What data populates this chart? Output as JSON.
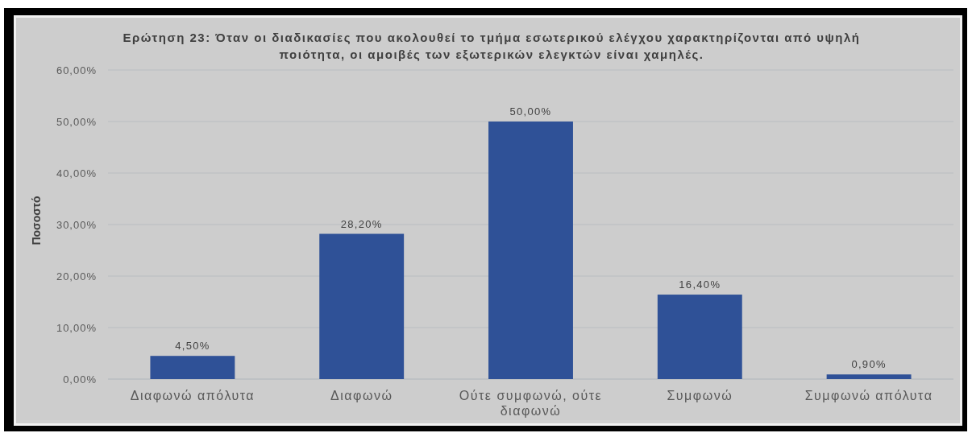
{
  "chart_data": {
    "type": "bar",
    "title": "Ερώτηση 23: Όταν οι διαδικασίες που ακολουθεί το τμήμα εσωτερικού ελέγχου χαρακτηρίζονται από υψηλή ποιότητα, οι αμοιβές των εξωτερικών ελεγκτών είναι χαμηλές.",
    "ylabel": "Ποσοστό",
    "categories": [
      "Διαφωνώ απόλυτα",
      "Διαφωνώ",
      "Ούτε συμφωνώ, ούτε διαφωνώ",
      "Συμφωνώ",
      "Συμφωνώ απόλυτα"
    ],
    "values": [
      4.5,
      28.2,
      50,
      16.4,
      0.9
    ],
    "value_labels": [
      "4,50%",
      "28,20%",
      "50,00%",
      "16,40%",
      "0,90%"
    ],
    "color": "#2f5197",
    "ylim": [
      0,
      60
    ],
    "yticks": [
      {
        "value": 0,
        "label": "0,00%"
      },
      {
        "value": 10,
        "label": "10,00%"
      },
      {
        "value": 20,
        "label": "20,00%"
      },
      {
        "value": 30,
        "label": "30,00%"
      },
      {
        "value": 40,
        "label": "40,00%"
      },
      {
        "value": 50,
        "label": "50,00%"
      },
      {
        "value": 60,
        "label": "60,00%"
      }
    ],
    "grid": "y"
  }
}
